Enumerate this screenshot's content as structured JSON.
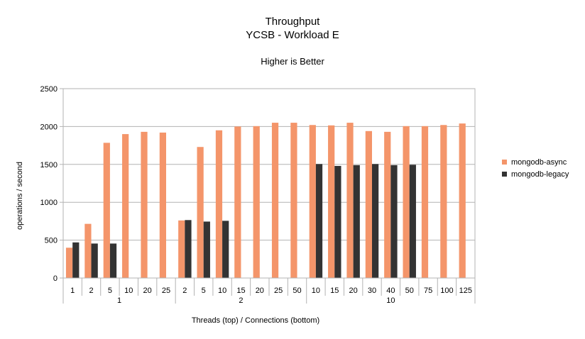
{
  "chart_data": {
    "type": "bar",
    "title": "Throughput",
    "subtitle": "YCSB - Workload E",
    "note": "Higher is Better",
    "xlabel": "Threads (top) / Connections (bottom)",
    "ylabel": "operations / second",
    "ylim": [
      0,
      2500
    ],
    "yticks": [
      0,
      500,
      1000,
      1500,
      2000,
      2500
    ],
    "grid": true,
    "legend_position": "right",
    "groups": [
      {
        "label": "1",
        "categories": [
          "1",
          "2",
          "5",
          "10",
          "20",
          "25"
        ]
      },
      {
        "label": "2",
        "categories": [
          "2",
          "5",
          "10",
          "15",
          "20",
          "25",
          "50"
        ]
      },
      {
        "label": "10",
        "categories": [
          "10",
          "15",
          "20",
          "30",
          "40",
          "50",
          "75",
          "100",
          "125"
        ]
      }
    ],
    "series": [
      {
        "name": "mongodb-async",
        "color": "#f4956a",
        "values": [
          400,
          715,
          1785,
          1900,
          1930,
          1920,
          760,
          1730,
          1950,
          2000,
          2005,
          2050,
          2050,
          2020,
          2015,
          2050,
          1940,
          1930,
          2005,
          2005,
          2020,
          2040
        ]
      },
      {
        "name": "mongodb-legacy",
        "color": "#333333",
        "values": [
          470,
          455,
          455,
          null,
          null,
          null,
          765,
          745,
          755,
          null,
          null,
          null,
          null,
          1505,
          1480,
          1490,
          1505,
          1490,
          1495,
          null,
          null,
          null
        ]
      }
    ]
  }
}
